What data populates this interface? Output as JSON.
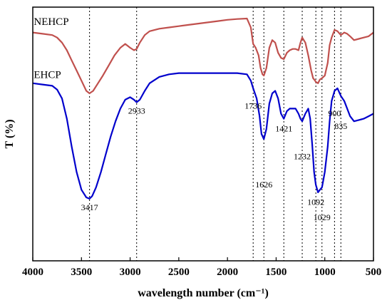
{
  "chart_data": {
    "type": "line",
    "xlabel": "wavelength number (cm⁻¹)",
    "ylabel": "T (%)",
    "xlim": [
      4000,
      500
    ],
    "ylim": [
      0,
      100
    ],
    "x_ticks": [
      4000,
      3500,
      3000,
      2500,
      2000,
      1500,
      1000,
      500
    ],
    "x_tick_labels": [
      "4000",
      "3500",
      "3000",
      "2500",
      "2000",
      "1500",
      "1000",
      "500"
    ],
    "grid": false,
    "legend": "inline labels",
    "reference_lines": [
      3417,
      2933,
      1736,
      1626,
      1421,
      1232,
      1092,
      1029,
      900,
      835
    ],
    "series": [
      {
        "name": "NEHCP",
        "color": "#c0504d",
        "label_anchor": [
          3990,
          93
        ],
        "x": [
          4000,
          3900,
          3800,
          3750,
          3700,
          3650,
          3600,
          3550,
          3500,
          3450,
          3417,
          3380,
          3330,
          3280,
          3220,
          3160,
          3100,
          3050,
          3000,
          2960,
          2933,
          2900,
          2850,
          2800,
          2700,
          2600,
          2500,
          2400,
          2300,
          2200,
          2100,
          2000,
          1900,
          1800,
          1760,
          1736,
          1710,
          1680,
          1660,
          1640,
          1626,
          1600,
          1570,
          1540,
          1510,
          1480,
          1450,
          1421,
          1390,
          1360,
          1330,
          1300,
          1270,
          1250,
          1232,
          1200,
          1170,
          1140,
          1120,
          1100,
          1092,
          1070,
          1050,
          1029,
          1000,
          970,
          950,
          930,
          900,
          870,
          835,
          800,
          770,
          740,
          700,
          650,
          600,
          550,
          500
        ],
        "y": [
          90,
          89.5,
          89,
          88,
          86,
          83,
          79,
          75,
          71,
          67,
          66,
          67,
          70,
          73,
          77,
          81,
          84,
          85.5,
          84,
          83,
          83.5,
          86,
          89,
          90.5,
          91.5,
          92,
          92.5,
          93,
          93.5,
          94,
          94.5,
          95,
          95.3,
          95.5,
          92,
          85.5,
          84,
          81,
          76,
          73.5,
          73,
          76,
          84,
          87,
          86,
          82,
          80,
          79.5,
          82,
          83,
          83.5,
          83.5,
          83,
          86,
          88,
          86,
          81,
          75,
          72,
          71,
          70.5,
          70,
          71.5,
          72,
          73,
          78,
          85,
          88,
          91,
          90.5,
          89,
          90,
          89.5,
          88.5,
          87,
          87.5,
          88,
          88.5,
          90
        ]
      },
      {
        "name": "EHCP",
        "color": "#0000cc",
        "label_anchor": [
          3990,
          72
        ],
        "x": [
          4000,
          3900,
          3800,
          3750,
          3700,
          3650,
          3600,
          3550,
          3500,
          3450,
          3417,
          3390,
          3350,
          3300,
          3250,
          3200,
          3150,
          3100,
          3050,
          3000,
          2960,
          2933,
          2900,
          2850,
          2800,
          2700,
          2600,
          2500,
          2400,
          2300,
          2200,
          2100,
          2000,
          1900,
          1800,
          1760,
          1736,
          1700,
          1670,
          1650,
          1626,
          1600,
          1570,
          1540,
          1510,
          1480,
          1450,
          1421,
          1390,
          1360,
          1330,
          1300,
          1270,
          1250,
          1232,
          1200,
          1170,
          1150,
          1130,
          1110,
          1092,
          1070,
          1050,
          1029,
          1000,
          970,
          950,
          930,
          900,
          870,
          835,
          800,
          770,
          740,
          700,
          650,
          600,
          550,
          500
        ],
        "y": [
          70,
          69.5,
          69,
          67.5,
          64,
          56,
          45,
          35,
          28,
          25,
          24.5,
          25.5,
          29,
          35,
          42,
          49,
          55,
          60,
          63.5,
          64.5,
          63.5,
          62.5,
          63.5,
          67,
          70,
          72.5,
          73.5,
          74,
          74,
          74,
          74,
          74,
          74,
          74,
          73.5,
          71,
          68,
          64,
          57,
          50,
          48,
          52,
          62,
          66,
          67,
          64,
          58,
          56,
          59,
          60,
          60,
          60,
          58,
          56,
          55,
          58,
          60,
          56,
          46,
          35,
          30,
          27,
          28,
          29,
          35,
          45,
          55,
          63,
          67,
          68,
          65,
          63,
          60,
          57,
          55,
          55.5,
          56,
          57,
          58
        ]
      }
    ],
    "annotations": [
      {
        "text": "3417",
        "x": 3417,
        "y": 20
      },
      {
        "text": "2933",
        "x": 2933,
        "y": 58
      },
      {
        "text": "1736",
        "x": 1736,
        "y": 60
      },
      {
        "text": "1626",
        "x": 1626,
        "y": 29
      },
      {
        "text": "1421",
        "x": 1421,
        "y": 51
      },
      {
        "text": "1232",
        "x": 1232,
        "y": 40
      },
      {
        "text": "1092",
        "x": 1092,
        "y": 22
      },
      {
        "text": "1029",
        "x": 1029,
        "y": 16
      },
      {
        "text": "900",
        "x": 900,
        "y": 57
      },
      {
        "text": "835",
        "x": 835,
        "y": 52
      }
    ]
  }
}
